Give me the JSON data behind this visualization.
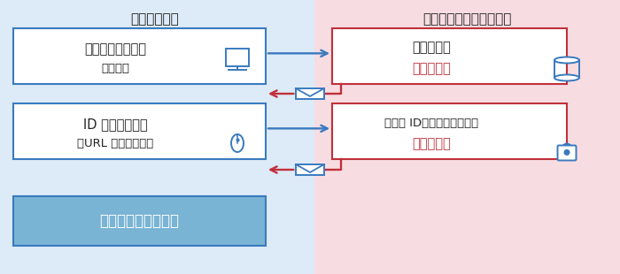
{
  "bg_left_color": "#ddeaf7",
  "bg_right_color": "#f7dde2",
  "title_left": "【ご利用者】",
  "title_right": "【ビューローベリタス】",
  "box1L_line1": "ご利用お申し込み",
  "box1L_line2": "（無料）",
  "box2L_line1": "ID 発行意思確認",
  "box2L_line2": "（URL をクリック）",
  "box3L_text": "ログイン・利用開始",
  "box1R_line1": "登録手続き",
  "box1R_line2": "＜仓登録＞",
  "box2R_line1": "ユーザ ID・パスワード発行",
  "box2R_line2": "＜本登録＞",
  "blue": "#3a7abf",
  "red": "#c0303a",
  "login_fill": "#7ab4d4",
  "white": "#ffffff",
  "black": "#222222"
}
